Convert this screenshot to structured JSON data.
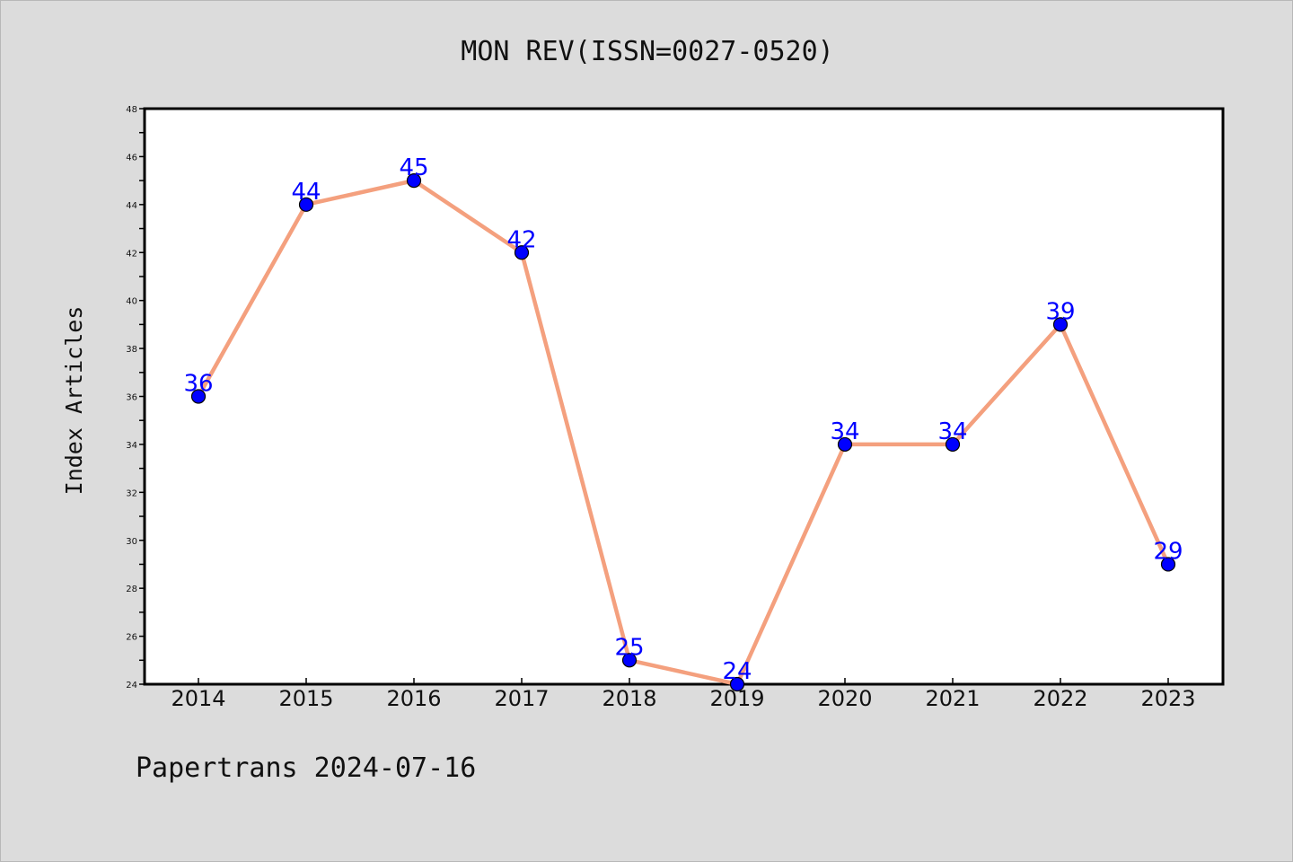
{
  "chart_data": {
    "type": "line",
    "title": "MON REV(ISSN=0027-0520)",
    "ylabel": "Index Articles",
    "xlabel": "",
    "categories": [
      "2014",
      "2015",
      "2016",
      "2017",
      "2018",
      "2019",
      "2020",
      "2021",
      "2022",
      "2023"
    ],
    "values": [
      36,
      44,
      45,
      42,
      25,
      24,
      34,
      34,
      39,
      29
    ],
    "ylim": [
      24,
      48
    ],
    "yticks": [
      24,
      26,
      28,
      30,
      32,
      34,
      36,
      38,
      40,
      42,
      44,
      46,
      48
    ],
    "grid": false,
    "legend": "none",
    "line_color": "#f4a07e",
    "marker_color": "#0000ff",
    "label_color": "#0000ff"
  },
  "footer": {
    "text": "Papertrans 2024-07-16"
  }
}
